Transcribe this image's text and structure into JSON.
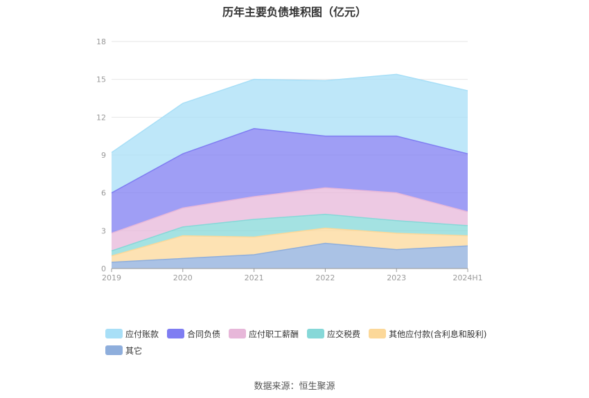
{
  "source_label": "数据来源：恒生聚源",
  "chart_data": {
    "type": "area",
    "stacked": true,
    "title": "历年主要负债堆积图（亿元）",
    "xlabel": "",
    "ylabel": "",
    "categories": [
      "2019",
      "2020",
      "2021",
      "2022",
      "2023",
      "2024H1"
    ],
    "ylim": [
      0,
      18
    ],
    "yticks": [
      0,
      3,
      6,
      9,
      12,
      15,
      18
    ],
    "grid": true,
    "legend_position": "bottom",
    "series": [
      {
        "name": "其它",
        "color": "#8eaedc",
        "values": [
          0.5,
          0.8,
          1.1,
          2.0,
          1.5,
          1.8
        ]
      },
      {
        "name": "其他应付款(含利息和股利)",
        "color": "#fcd899",
        "values": [
          0.5,
          1.8,
          1.4,
          1.2,
          1.3,
          0.8
        ]
      },
      {
        "name": "应交税费",
        "color": "#86d8d8",
        "values": [
          0.4,
          0.7,
          1.4,
          1.1,
          1.0,
          0.8
        ]
      },
      {
        "name": "应付职工薪酬",
        "color": "#e7b7d9",
        "values": [
          1.4,
          1.5,
          1.8,
          2.1,
          2.2,
          1.1
        ]
      },
      {
        "name": "合同负债",
        "color": "#7f7df2",
        "values": [
          3.2,
          4.3,
          5.4,
          4.1,
          4.5,
          4.6
        ]
      },
      {
        "name": "应付账款",
        "color": "#a8dff7",
        "values": [
          3.2,
          4.0,
          3.9,
          4.4,
          4.9,
          5.0
        ]
      }
    ]
  }
}
